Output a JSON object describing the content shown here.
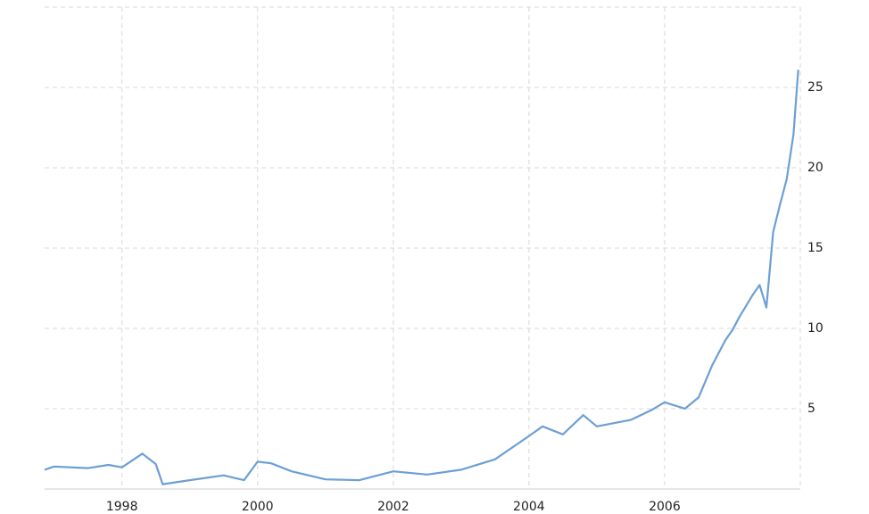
{
  "chart_data": {
    "type": "line",
    "x": [
      1996.86,
      1997.0,
      1997.5,
      1997.8,
      1998.0,
      1998.3,
      1998.5,
      1998.6,
      1999.0,
      1999.5,
      1999.8,
      2000.0,
      2000.2,
      2000.5,
      2001.0,
      2001.5,
      2002.0,
      2002.5,
      2003.0,
      2003.5,
      2004.0,
      2004.2,
      2004.5,
      2004.8,
      2005.0,
      2005.5,
      2005.8,
      2006.0,
      2006.3,
      2006.5,
      2006.7,
      2006.9,
      2007.0,
      2007.1,
      2007.3,
      2007.4,
      2007.5,
      2007.6,
      2007.7,
      2007.8,
      2007.9,
      2007.97
    ],
    "series": [
      {
        "color": "#6c9fd5",
        "values": [
          1.2,
          1.4,
          1.3,
          1.5,
          1.35,
          2.2,
          1.55,
          0.3,
          0.55,
          0.85,
          0.55,
          1.7,
          1.6,
          1.1,
          0.6,
          0.55,
          1.1,
          0.9,
          1.2,
          1.85,
          3.3,
          3.9,
          3.4,
          4.6,
          3.9,
          4.3,
          4.9,
          5.4,
          5.0,
          5.7,
          7.7,
          9.3,
          9.9,
          10.7,
          12.1,
          12.7,
          11.3,
          16,
          17.7,
          19.3,
          22.1,
          26.1
        ]
      }
    ],
    "xlim": [
      1996.86,
      2008.0
    ],
    "xticks": [
      1998,
      2000,
      2002,
      2004,
      2006
    ],
    "ylim": [
      0,
      30
    ],
    "yticks": [
      5,
      10,
      15,
      20,
      25
    ],
    "grid": true
  }
}
